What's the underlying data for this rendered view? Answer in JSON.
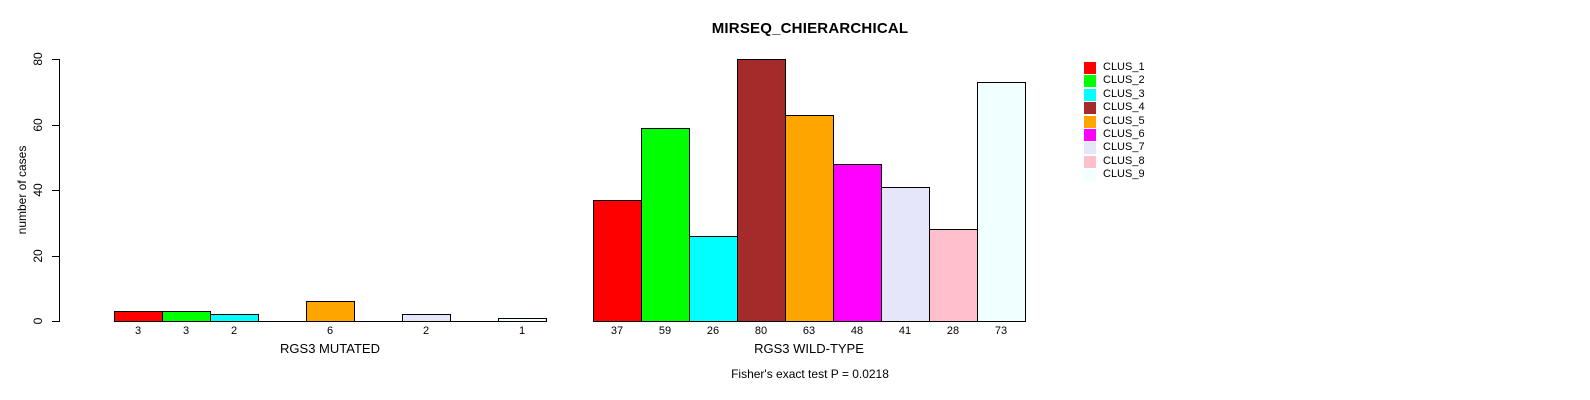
{
  "chart_data": {
    "type": "bar",
    "title": "MIRSEQ_CHIERARCHICAL",
    "ylabel": "number of cases",
    "xlabel": "",
    "ylim": [
      0,
      80
    ],
    "yticks": [
      0,
      20,
      40,
      60,
      80
    ],
    "grid": false,
    "legend_position": "top-right",
    "bar_value_labels_shown": true,
    "clusters": [
      {
        "name": "CLUS_1",
        "color": "#FF0000"
      },
      {
        "name": "CLUS_2",
        "color": "#00FF00"
      },
      {
        "name": "CLUS_3",
        "color": "#00FFFF"
      },
      {
        "name": "CLUS_4",
        "color": "#A52A2A"
      },
      {
        "name": "CLUS_5",
        "color": "#FFA500"
      },
      {
        "name": "CLUS_6",
        "color": "#FF00FF"
      },
      {
        "name": "CLUS_7",
        "color": "#E6E6FA"
      },
      {
        "name": "CLUS_8",
        "color": "#FFC0CB"
      },
      {
        "name": "CLUS_9",
        "color": "#F0FFFF"
      }
    ],
    "groups": [
      {
        "label": "RGS3 MUTATED",
        "values": [
          3,
          3,
          2,
          0,
          6,
          0,
          2,
          0,
          1
        ]
      },
      {
        "label": "RGS3 WILD-TYPE",
        "values": [
          37,
          59,
          26,
          80,
          63,
          48,
          41,
          28,
          73
        ]
      }
    ],
    "annotation": "Fisher's exact test P = 0.0218"
  }
}
